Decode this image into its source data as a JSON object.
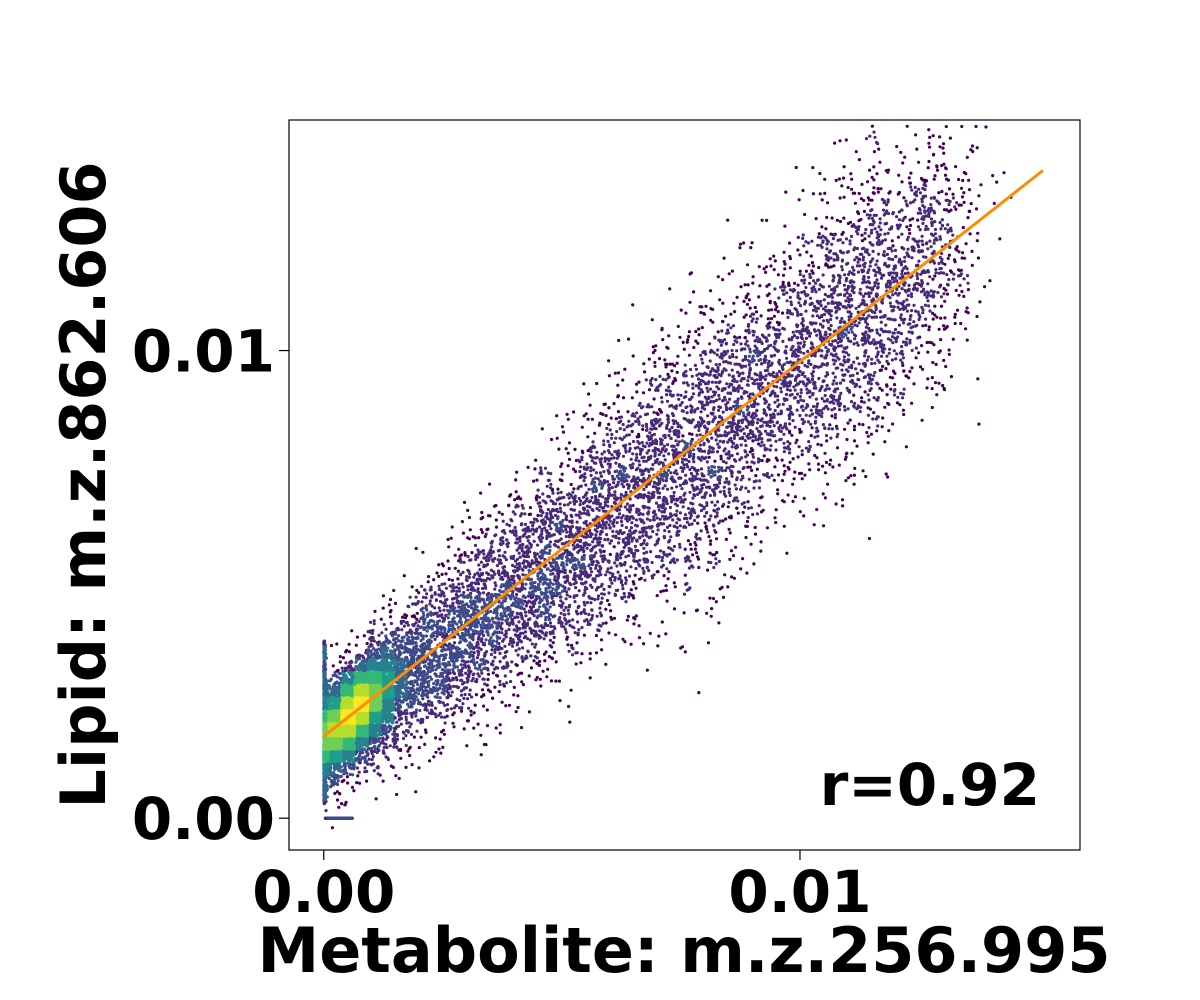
{
  "chart_data": {
    "type": "scatter",
    "title": "",
    "xlabel": "Metabolite: m.z.256.995",
    "ylabel": "Lipid: m.z.862.606",
    "xlim": [
      -0.00073,
      0.01588
    ],
    "ylim": [
      -0.00068,
      0.01493
    ],
    "xticks": [
      0.0,
      0.01
    ],
    "xtick_labels": [
      "0.00",
      "0.01"
    ],
    "yticks": [
      0.0,
      0.01
    ],
    "ytick_labels": [
      "0.00",
      "0.01"
    ],
    "grid": false,
    "colormap": "viridis (point density)",
    "point_color_low_density": "#440154",
    "point_color_high_density": "#fde725",
    "fit_line": {
      "color": "#ff8c00",
      "x": [
        0.0,
        0.0151
      ],
      "y": [
        0.00175,
        0.01385
      ]
    },
    "annotation": "r=0.92",
    "point_cloud": {
      "n_points_approx": 20000,
      "description": "dense cluster near (0.0006, 0.0018) spreading along fit line up to about (0.014, 0.0095)",
      "density_centers": [
        {
          "x": 0.0006,
          "y": 0.0018
        },
        {
          "x": 0.0035,
          "y": 0.0048
        },
        {
          "x": 0.0075,
          "y": 0.008
        },
        {
          "x": 0.0105,
          "y": 0.01
        }
      ]
    }
  }
}
